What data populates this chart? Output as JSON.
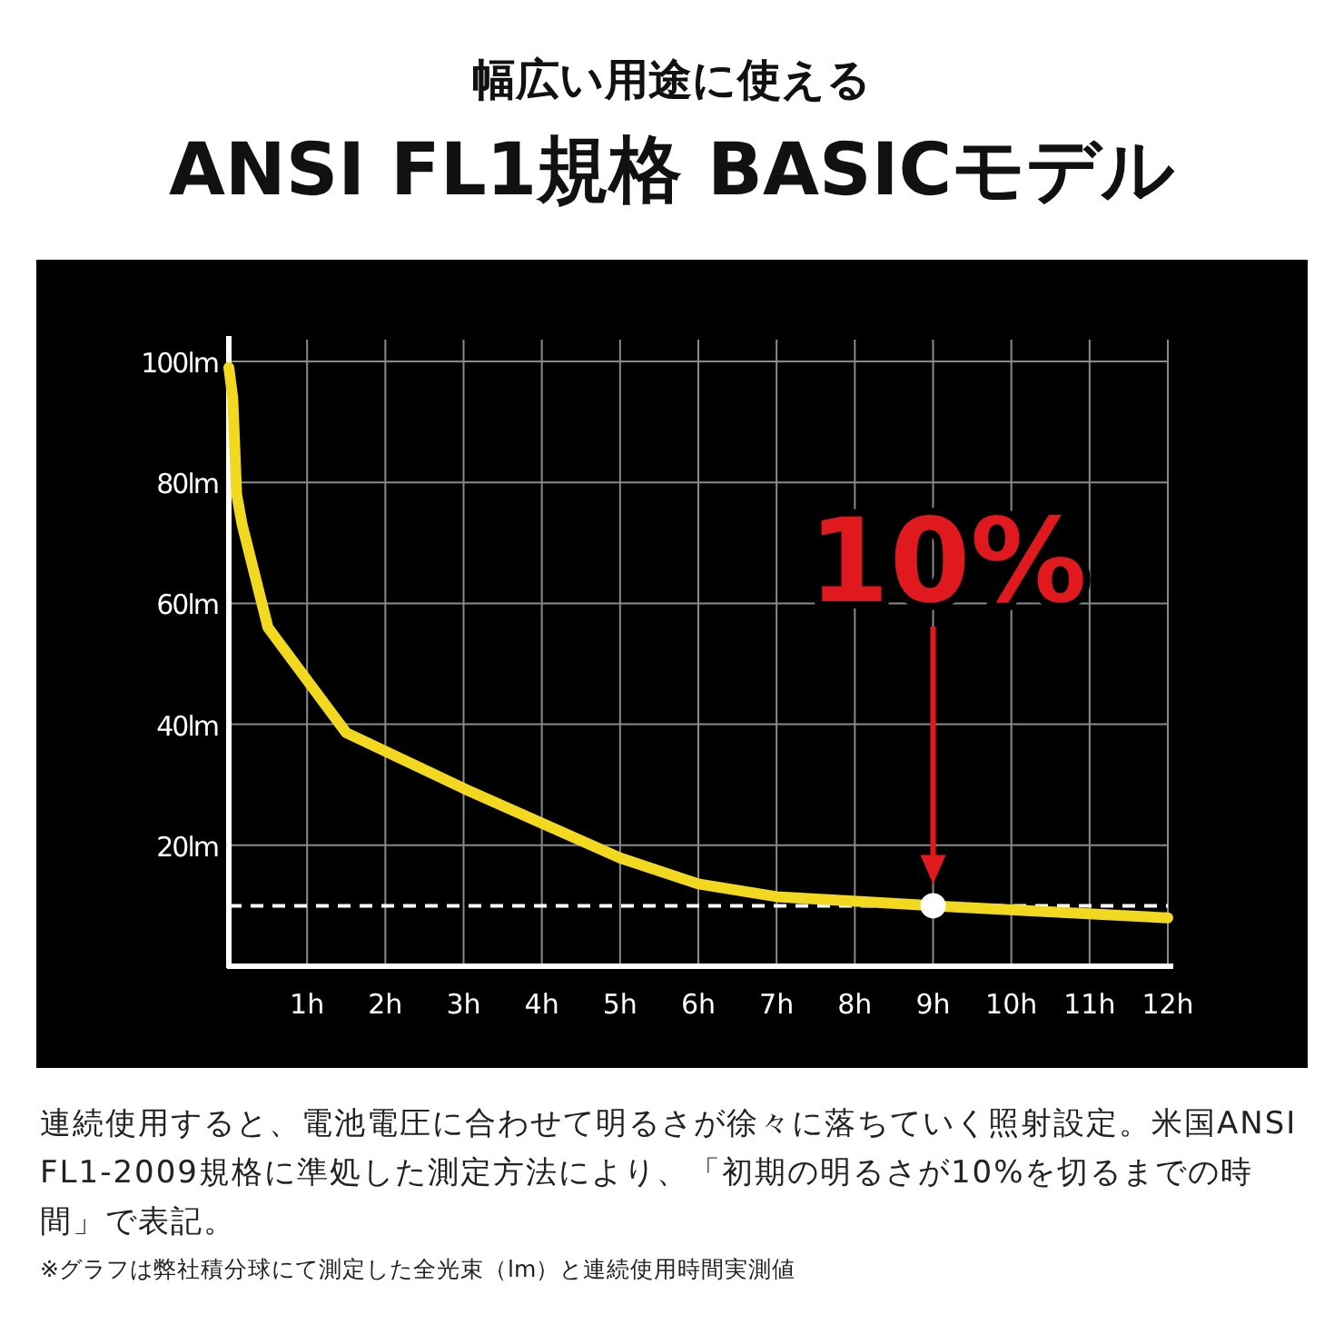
{
  "chart_data": {
    "type": "line",
    "subtitle": "幅広い用途に使える",
    "title": "ANSI FL1規格 BASICモデル",
    "x": [
      0,
      0.05,
      0.1,
      0.17,
      0.5,
      1.5,
      3,
      5,
      6,
      7,
      9,
      12
    ],
    "series": [
      {
        "color": "#f2d91f",
        "values": [
          99,
          94,
          78,
          73,
          56,
          38.6,
          29.4,
          17.9,
          13.6,
          11.5,
          10,
          8
        ]
      },
      {
        "type": "scatter",
        "color": "#ffffff",
        "x": [
          9
        ],
        "values": [
          10
        ]
      }
    ],
    "xlim": [
      0,
      12
    ],
    "xticks": [
      {
        "value": 1,
        "label": "1h"
      },
      {
        "value": 2,
        "label": "2h"
      },
      {
        "value": 3,
        "label": "3h"
      },
      {
        "value": 4,
        "label": "4h"
      },
      {
        "value": 5,
        "label": "5h"
      },
      {
        "value": 6,
        "label": "6h"
      },
      {
        "value": 7,
        "label": "7h"
      },
      {
        "value": 8,
        "label": "8h"
      },
      {
        "value": 9,
        "label": "9h"
      },
      {
        "value": 10,
        "label": "10h"
      },
      {
        "value": 11,
        "label": "11h"
      },
      {
        "value": 12,
        "label": "12h"
      }
    ],
    "ylim": [
      0,
      100
    ],
    "yticks": [
      {
        "value": 20,
        "label": "20lm"
      },
      {
        "value": 40,
        "label": "40lm"
      },
      {
        "value": 60,
        "label": "60lm"
      },
      {
        "value": 80,
        "label": "80lm"
      },
      {
        "value": 100,
        "label": "100lm"
      }
    ],
    "grid": true,
    "ref_lines": [
      {
        "axis": "y",
        "value": 10,
        "color": "#ffffff",
        "line_style": "dashed"
      }
    ],
    "annotations": [
      {
        "text": "10%",
        "x": 9,
        "y": 10
      },
      "連続使用すると、電池電圧に合わせて明るさが徐々に落ちていく照射設定。米国ANSI　FL1-2009規格に準処した測定方法により、「初期の明るさが10%を切るまでの時間」で表記。",
      "※グラフは弊社積分球にて測定した全光束（lm）と連続使用時間実測値"
    ]
  }
}
